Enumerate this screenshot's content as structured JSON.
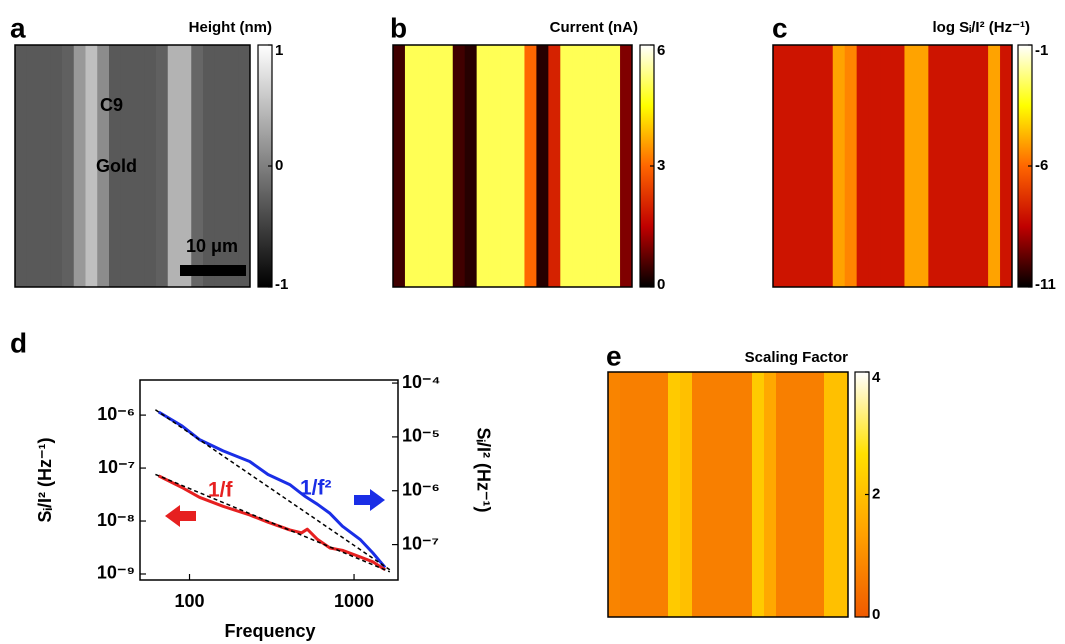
{
  "chart_data": [
    {
      "type": "heatmap",
      "label": "a",
      "title": "Height (nm)",
      "values": [
        -0.3,
        -0.3,
        -0.3,
        -0.3,
        -0.25,
        0.2,
        0.5,
        0.1,
        -0.3,
        -0.3,
        -0.3,
        -0.3,
        -0.25,
        0.4,
        0.4,
        -0.2,
        -0.3,
        -0.3,
        -0.3,
        -0.3
      ],
      "clim": [
        -1,
        1
      ],
      "cticks": [
        1,
        0,
        -1
      ],
      "colormap": [
        "#000000",
        "#ffffff"
      ],
      "annotations": [
        "C9",
        "Gold",
        "10 μm"
      ]
    },
    {
      "type": "heatmap",
      "label": "b",
      "title": "Current (nA)",
      "values": [
        0.5,
        5,
        5,
        5,
        5,
        0.5,
        0.3,
        5,
        5,
        5,
        5,
        3,
        0.3,
        2,
        5,
        5,
        5,
        5,
        5,
        1
      ],
      "clim": [
        0,
        6
      ],
      "cticks": [
        6,
        3,
        0
      ],
      "colormap": [
        "#000000",
        "#c00000",
        "#ff6600",
        "#ffff00",
        "#ffffff"
      ]
    },
    {
      "type": "heatmap",
      "label": "c",
      "title": "log Sᵢ/I² (Hz⁻¹)",
      "values": [
        -8,
        -8,
        -8,
        -8,
        -8,
        -5,
        -5.5,
        -8,
        -8,
        -8,
        -8,
        -5,
        -5,
        -8,
        -8,
        -8,
        -8,
        -8,
        -5,
        -8
      ],
      "clim": [
        -11,
        -1
      ],
      "cticks": [
        -1,
        -6,
        -11
      ],
      "colormap": [
        "#000000",
        "#c00000",
        "#ff6600",
        "#ffff00",
        "#ffffff"
      ]
    },
    {
      "type": "line",
      "label": "d",
      "xlabel": "Frequency",
      "ylabel": "Sᵢ/I² (Hz⁻¹)",
      "y2label": "Sᵢ/I² (Hz⁻¹)",
      "xscale": "log",
      "yscale": "log",
      "xlim": [
        50,
        1850
      ],
      "ylim": [
        7.7e-10,
        4.6e-06
      ],
      "y2lim": [
        2.2e-08,
        0.000114
      ],
      "xticks": [
        100,
        1000
      ],
      "yticks": [
        {
          "value": 1e-06,
          "label": "10⁻⁶"
        },
        {
          "value": 1e-07,
          "label": "10⁻⁷"
        },
        {
          "value": 1e-08,
          "label": "10⁻⁸"
        },
        {
          "value": 1e-09,
          "label": "10⁻⁹"
        }
      ],
      "y2ticks": [
        {
          "value": 0.0001,
          "label": "10⁻⁴"
        },
        {
          "value": 1e-05,
          "label": "10⁻⁵"
        },
        {
          "value": 1e-06,
          "label": "10⁻⁶"
        },
        {
          "value": 1e-07,
          "label": "10⁻⁷"
        }
      ],
      "series": [
        {
          "name": "1/f²",
          "color": "#1a2ee6",
          "axis": "y2",
          "x": [
            65,
            90,
            115,
            160,
            232,
            300,
            407,
            500,
            600,
            714,
            850,
            1088,
            1300,
            1545
          ],
          "values": [
            2.9e-05,
            1.6e-05,
            8.9e-06,
            5.5e-06,
            3.5e-06,
            2e-06,
            1.3e-06,
            8e-07,
            5.6e-07,
            3.8e-07,
            2.2e-07,
            1.25e-07,
            7e-08,
            3.75e-08
          ]
        },
        {
          "name": "1/f",
          "color": "#e62020",
          "x": [
            65,
            90,
            115,
            160,
            232,
            300,
            407,
            480,
            520,
            600,
            714,
            850,
            1088,
            1300,
            1545
          ],
          "values": [
            7.1e-08,
            4.3e-08,
            2.8e-08,
            1.9e-08,
            1.3e-08,
            9.5e-09,
            6.8e-09,
            6e-09,
            7e-09,
            4.5e-09,
            3.1e-09,
            2.8e-09,
            2.1e-09,
            1.7e-09,
            1.2e-09
          ]
        }
      ],
      "fits": [
        {
          "color": "#000000",
          "axis": "y2",
          "x": [
            62,
            1650
          ],
          "values": [
            3.2e-05,
            3.4e-08
          ]
        },
        {
          "color": "#000000",
          "x": [
            62,
            1650
          ],
          "values": [
            7.6e-08,
            1.1e-09
          ]
        }
      ]
    },
    {
      "type": "heatmap",
      "label": "e",
      "title": "Scaling Factor",
      "values": [
        0.8,
        0.7,
        0.7,
        0.7,
        0.7,
        2.2,
        2.0,
        0.7,
        0.7,
        0.7,
        0.7,
        0.7,
        2.2,
        1.5,
        0.7,
        0.7,
        0.7,
        0.7,
        2.0,
        2.0
      ],
      "clim": [
        0,
        4
      ],
      "cticks": [
        4,
        2,
        0
      ],
      "colormap": [
        "#f05a00",
        "#ffa000",
        "#ffe000",
        "#ffffff"
      ]
    }
  ]
}
